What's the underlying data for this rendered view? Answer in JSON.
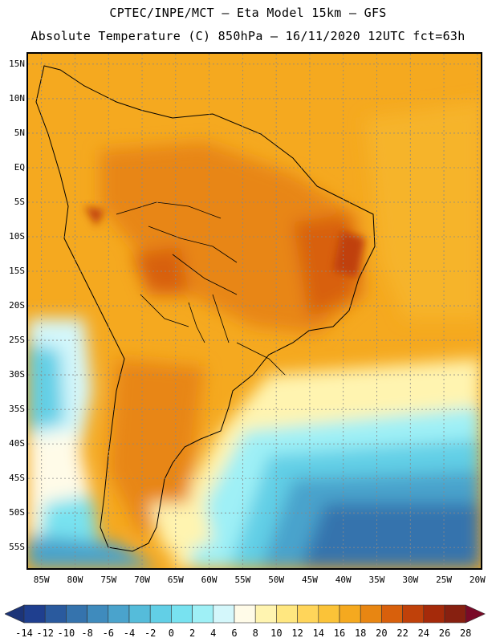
{
  "title": {
    "line1": "CPTEC/INPE/MCT –  Eta Model 15km – GFS",
    "line2": "Absolute Temperature (C) 850hPa – 16/11/2020 12UTC fct=63h"
  },
  "map": {
    "region": "South America",
    "lat_labels": [
      "15N",
      "10N",
      "5N",
      "EQ",
      "5S",
      "10S",
      "15S",
      "20S",
      "25S",
      "30S",
      "35S",
      "40S",
      "45S",
      "50S",
      "55S"
    ],
    "lon_labels": [
      "85W",
      "80W",
      "75W",
      "70W",
      "65W",
      "60W",
      "55W",
      "50W",
      "45W",
      "40W",
      "35W",
      "30W",
      "25W",
      "20W"
    ],
    "lat_values": [
      15,
      10,
      5,
      0,
      -5,
      -10,
      -15,
      -20,
      -25,
      -30,
      -35,
      -40,
      -45,
      -50,
      -55
    ],
    "lon_values": [
      -85,
      -80,
      -75,
      -70,
      -65,
      -60,
      -55,
      -50,
      -45,
      -40,
      -35,
      -30,
      -25,
      -20
    ]
  },
  "colorbar": {
    "labels": [
      "-14",
      "-12",
      "-10",
      "-8",
      "-6",
      "-4",
      "-2",
      "0",
      "2",
      "4",
      "6",
      "8",
      "10",
      "12",
      "14",
      "16",
      "18",
      "20",
      "22",
      "24",
      "26",
      "28"
    ],
    "colors": [
      "#1f3f8f",
      "#2a5a9e",
      "#3573ad",
      "#3f8bbd",
      "#4aa3cc",
      "#55bcda",
      "#62cfe6",
      "#78e2f0",
      "#9ff0f6",
      "#d4f7fb",
      "#fffbe8",
      "#fff4b0",
      "#ffe780",
      "#ffd55a",
      "#fbc338",
      "#f5a91f",
      "#e88612",
      "#d8600c",
      "#c0410a",
      "#a52a0a",
      "#872010"
    ],
    "left_arrow_color": "#1c3478",
    "right_arrow_color": "#7a0a28"
  }
}
